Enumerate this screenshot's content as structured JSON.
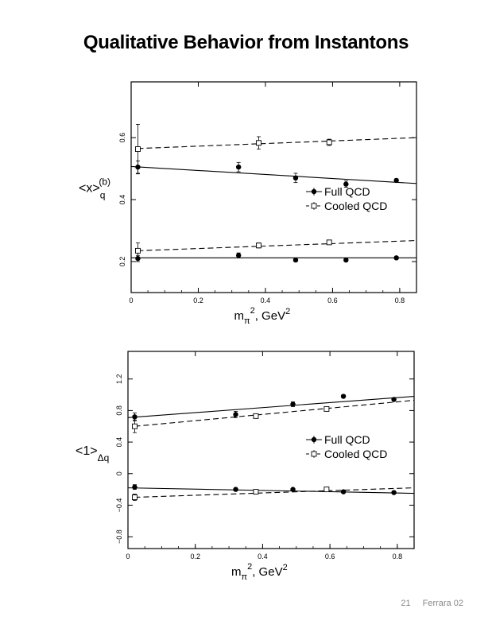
{
  "slide": {
    "title": "Qualitative Behavior from Instantons",
    "footer_page": "21",
    "footer_label": "Ferrara  02"
  },
  "chart_data": [
    {
      "type": "scatter",
      "xlabel": "m_π², GeV²",
      "ylabel": "<x>_q^(b)",
      "xlim": [
        0,
        0.85
      ],
      "ylim": [
        0.1,
        0.78
      ],
      "xticks": [
        0,
        0.2,
        0.4,
        0.6,
        0.8
      ],
      "xtick_labels": [
        "0",
        "0.2",
        "0.4",
        "0.6",
        "0.8"
      ],
      "yticks": [
        0.2,
        0.4,
        0.6
      ],
      "ytick_labels": [
        "0.2",
        "0.4",
        "0.6"
      ],
      "legend_placement": "center-right",
      "series": [
        {
          "name": "Full QCD",
          "marker": "filled-circle",
          "line": "solid",
          "x": [
            0.02,
            0.32,
            0.49,
            0.64,
            0.79
          ],
          "y": [
            0.505,
            0.505,
            0.47,
            0.45,
            0.462
          ],
          "err": [
            0.02,
            0.015,
            0.015,
            0.01,
            0.005
          ],
          "fit": [
            [
              0,
              0.507
            ],
            [
              0.85,
              0.452
            ]
          ]
        },
        {
          "name": "Cooled QCD",
          "marker": "open-square",
          "line": "dashed",
          "x": [
            0.02,
            0.38,
            0.59
          ],
          "y": [
            0.563,
            0.583,
            0.585
          ],
          "err": [
            0.08,
            0.02,
            0.01
          ],
          "fit": [
            [
              0.02,
              0.565
            ],
            [
              0.85,
              0.6
            ]
          ]
        },
        {
          "name": "Full QCD",
          "marker": "filled-circle",
          "line": "solid",
          "x": [
            0.02,
            0.32,
            0.49,
            0.64,
            0.79
          ],
          "y": [
            0.21,
            0.22,
            0.205,
            0.205,
            0.212
          ],
          "err": [
            0.01,
            0.008,
            0.005,
            0.004,
            0.004
          ],
          "fit": [
            [
              0,
              0.212
            ],
            [
              0.85,
              0.212
            ]
          ]
        },
        {
          "name": "Cooled QCD",
          "marker": "open-square",
          "line": "dashed",
          "x": [
            0.02,
            0.38,
            0.59
          ],
          "y": [
            0.235,
            0.252,
            0.262
          ],
          "err": [
            0.025,
            0.008,
            0.005
          ],
          "fit": [
            [
              0.02,
              0.235
            ],
            [
              0.85,
              0.268
            ]
          ]
        }
      ]
    },
    {
      "type": "scatter",
      "xlabel": "m_π², GeV²",
      "ylabel": "<1>_Δq",
      "xlim": [
        0,
        0.85
      ],
      "ylim": [
        -0.95,
        1.55
      ],
      "xticks": [
        0,
        0.2,
        0.4,
        0.6,
        0.8
      ],
      "xtick_labels": [
        "0",
        "0.2",
        "0.4",
        "0.6",
        "0.8"
      ],
      "yticks": [
        -0.8,
        -0.4,
        0,
        0.4,
        0.8,
        1.2
      ],
      "ytick_labels": [
        "−0.8",
        "−0.4",
        "0",
        "0.4",
        "0.8",
        "1.2"
      ],
      "legend_placement": "center-right",
      "series": [
        {
          "name": "Full QCD",
          "marker": "filled-circle",
          "line": "solid",
          "x": [
            0.02,
            0.32,
            0.49,
            0.64,
            0.79
          ],
          "y": [
            0.72,
            0.75,
            0.88,
            0.98,
            0.94
          ],
          "err": [
            0.05,
            0.04,
            0.03,
            0.02,
            0.015
          ],
          "fit": [
            [
              0,
              0.71
            ],
            [
              0.85,
              0.98
            ]
          ]
        },
        {
          "name": "Cooled QCD",
          "marker": "open-square",
          "line": "dashed",
          "x": [
            0.02,
            0.38,
            0.59
          ],
          "y": [
            0.6,
            0.73,
            0.82
          ],
          "err": [
            0.08,
            0.02,
            0.015
          ],
          "fit": [
            [
              0.02,
              0.6
            ],
            [
              0.85,
              0.93
            ]
          ]
        },
        {
          "name": "Full QCD",
          "marker": "filled-circle",
          "line": "solid",
          "x": [
            0.02,
            0.32,
            0.49,
            0.64,
            0.79
          ],
          "y": [
            -0.17,
            -0.2,
            -0.2,
            -0.23,
            -0.24
          ],
          "err": [
            0.03,
            0.02,
            0.01,
            0.01,
            0.01
          ],
          "fit": [
            [
              0,
              -0.18
            ],
            [
              0.85,
              -0.25
            ]
          ]
        },
        {
          "name": "Cooled QCD",
          "marker": "open-square",
          "line": "dashed",
          "x": [
            0.02,
            0.38,
            0.59
          ],
          "y": [
            -0.3,
            -0.23,
            -0.2
          ],
          "err": [
            0.04,
            0.015,
            0.01
          ],
          "fit": [
            [
              0.02,
              -0.3
            ],
            [
              0.85,
              -0.18
            ]
          ]
        }
      ]
    }
  ]
}
